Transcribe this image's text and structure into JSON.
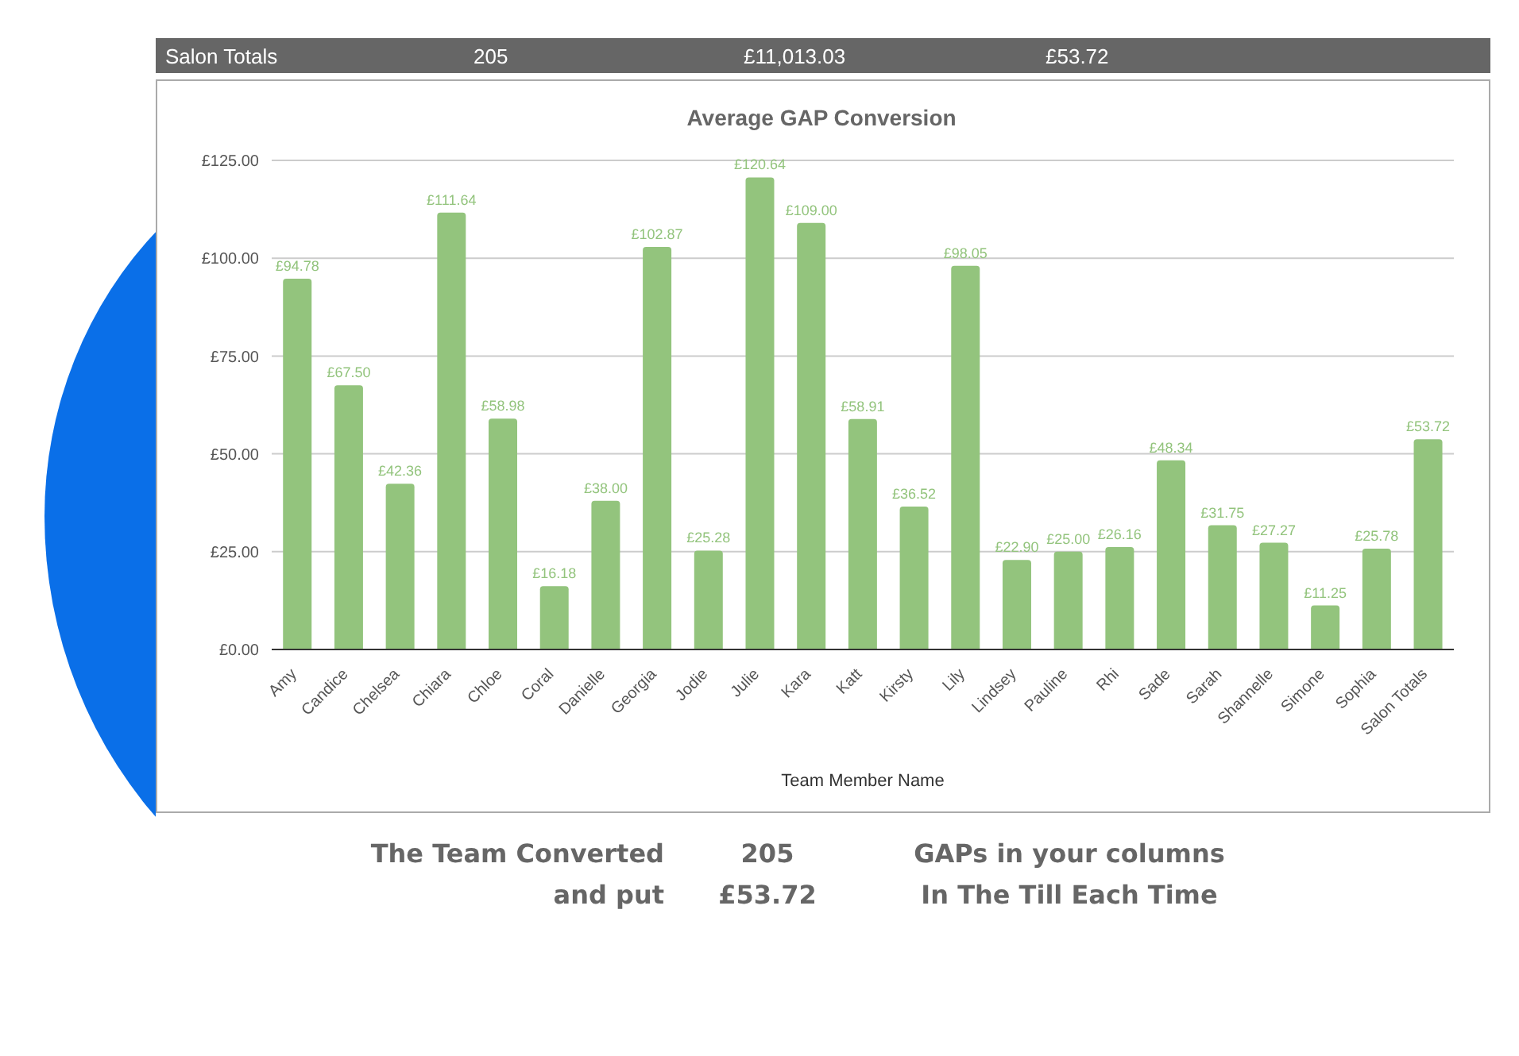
{
  "chart_data": {
    "type": "bar",
    "title": "Average GAP Conversion",
    "xlabel": "Team Member Name",
    "categories": [
      "Amy",
      "Candice",
      "Chelsea",
      "Chiara",
      "Chloe",
      "Coral",
      "Danielle",
      "Georgia",
      "Jodie",
      "Julie",
      "Kara",
      "Katt",
      "Kirsty",
      "Lily",
      "Lindsey",
      "Pauline",
      "Rhi",
      "Sade",
      "Sarah",
      "Shannelle",
      "Simone",
      "Sophia",
      "Salon Totals"
    ],
    "values": [
      94.78,
      67.5,
      42.36,
      111.64,
      58.98,
      16.18,
      38,
      102.87,
      25.28,
      120.64,
      109,
      58.91,
      36.52,
      98.05,
      22.9,
      25,
      26.16,
      48.34,
      31.75,
      27.27,
      11.25,
      25.78,
      53.72
    ],
    "value_labels": [
      "£94.78",
      "£67.50",
      "£42.36",
      "£111.64",
      "£58.98",
      "£16.18",
      "£38.00",
      "£102.87",
      "£25.28",
      "£120.64",
      "£109.00",
      "£58.91",
      "£36.52",
      "£98.05",
      "£22.90",
      "£25.00",
      "£26.16",
      "£48.34",
      "£31.75",
      "£27.27",
      "£11.25",
      "£25.78",
      "£53.72"
    ],
    "color": "#93c47d",
    "ylim": [
      0,
      125
    ],
    "yticks": [
      {
        "value": 0,
        "label": "£0.00"
      },
      {
        "value": 25,
        "label": "£25.00"
      },
      {
        "value": 50,
        "label": "£50.00"
      },
      {
        "value": 75,
        "label": "£75.00"
      },
      {
        "value": 100,
        "label": "£100.00"
      },
      {
        "value": 125,
        "label": "£125.00"
      }
    ],
    "grid": "y",
    "annotations": [
      "Salon Totals",
      "205",
      "£11,013.03",
      "£53.72",
      "The Team Converted",
      "205",
      "GAPs in your columns",
      "and put",
      "£53.72",
      "In The Till Each Time"
    ]
  }
}
